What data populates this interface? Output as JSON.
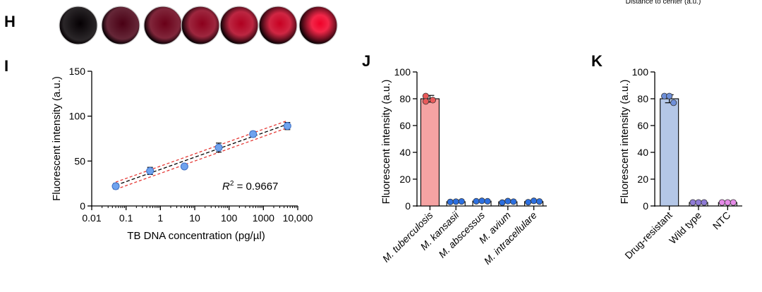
{
  "top_caption": "Distance to center (a.u.)",
  "panel_h": {
    "letter": "H",
    "circles": [
      {
        "glow": "#050003",
        "level": 0.0
      },
      {
        "glow": "#4a0014",
        "level": 0.15
      },
      {
        "glow": "#6a0018",
        "level": 0.25
      },
      {
        "glow": "#8c001c",
        "level": 0.45
      },
      {
        "glow": "#b00020",
        "level": 0.6
      },
      {
        "glow": "#c80022",
        "level": 0.75
      },
      {
        "glow": "#f00028",
        "level": 1.0
      }
    ]
  },
  "panel_i": {
    "letter": "I",
    "r2_label": "R",
    "r2_sup": "2",
    "r2_value": " = 0.9667",
    "point_color": "#6fa3ee",
    "fit_color": "#000000",
    "ci_color": "#e53935"
  },
  "panel_j": {
    "letter": "J",
    "colors": {
      "red_bar": "#f5a3a3",
      "red_dot": "#e85a5a",
      "blue_dot": "#2c6fe0"
    }
  },
  "panel_k": {
    "letter": "K",
    "colors": {
      "bar": "#b4c7e7",
      "blue_dot": "#6e8fd8",
      "purple_dot": "#8f7bd6",
      "pink_dot": "#e58be8"
    }
  },
  "chart_data": [
    {
      "id": "I",
      "type": "scatter",
      "xlabel": "TB DNA concentration (pg/µl)",
      "ylabel": "Fluorescent intensity (a.u.)",
      "xscale": "log",
      "xlim": [
        0.01,
        10000
      ],
      "ylim": [
        0,
        150
      ],
      "xticks": [
        "0.01",
        "0.1",
        "1",
        "10",
        "100",
        "1000",
        "10,000"
      ],
      "yticks": [
        "0",
        "50",
        "100",
        "150"
      ],
      "x": [
        0.05,
        0.5,
        5,
        50,
        500,
        5000
      ],
      "y": [
        22,
        39,
        44,
        65,
        80,
        89
      ],
      "err": [
        3,
        4,
        2,
        5,
        3,
        4
      ],
      "fit": {
        "x": [
          0.05,
          5000
        ],
        "y": [
          23,
          91
        ]
      },
      "ci_lower": {
        "x": [
          0.05,
          5000
        ],
        "y": [
          18.5,
          87
        ]
      },
      "ci_upper": {
        "x": [
          0.05,
          5000
        ],
        "y": [
          26.5,
          95
        ]
      },
      "grid": false
    },
    {
      "id": "J",
      "type": "bar",
      "ylabel": "Fluorescent intensity (a.u.)",
      "ylim": [
        0,
        100
      ],
      "yticks": [
        "0",
        "20",
        "40",
        "60",
        "80",
        "100"
      ],
      "categories": [
        "M. tuberculosis",
        "M. kansasii",
        "M. abscessus",
        "M. avium",
        "M. intracellulare"
      ],
      "values": [
        80,
        3.2,
        3.6,
        3.1,
        3.3
      ],
      "err": [
        2.5,
        0,
        0,
        0,
        0
      ],
      "points": [
        [
          82,
          78,
          79
        ],
        [
          3,
          3.2,
          3.4
        ],
        [
          3.5,
          3.8,
          3.5
        ],
        [
          2.5,
          3.6,
          3.2
        ],
        [
          2.8,
          3.8,
          3.3
        ]
      ],
      "grid": false
    },
    {
      "id": "K",
      "type": "bar",
      "ylabel": "Fluorescent intensity (a.u.)",
      "ylim": [
        0,
        100
      ],
      "yticks": [
        "0",
        "20",
        "40",
        "60",
        "80",
        "100"
      ],
      "categories": [
        "Drug-resistant",
        "Wild type",
        "NTC"
      ],
      "values": [
        80,
        2.6,
        2.6
      ],
      "err": [
        3,
        0,
        0
      ],
      "points": [
        [
          82,
          77,
          82
        ],
        [
          2.6,
          2.6,
          2.6
        ],
        [
          2.6,
          2.6,
          2.6
        ]
      ],
      "grid": false
    }
  ]
}
